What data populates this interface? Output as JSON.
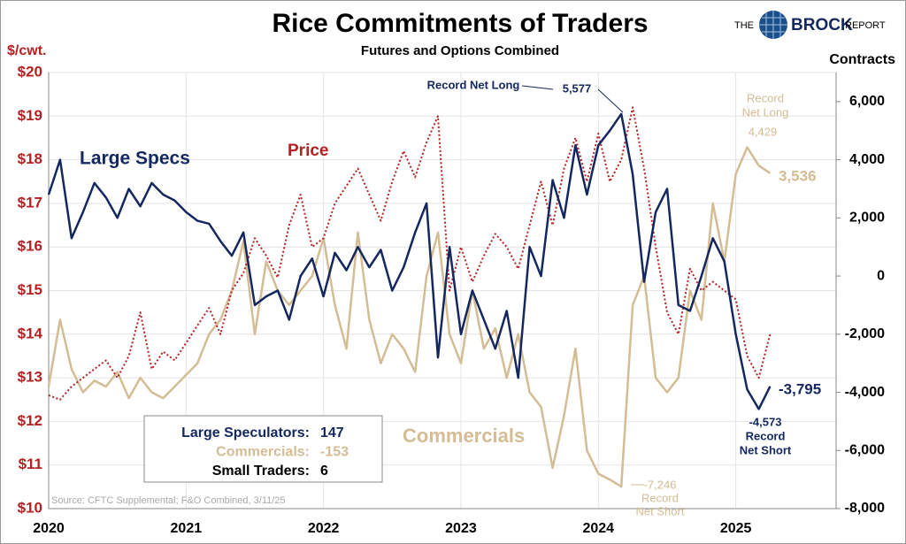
{
  "chart_data": {
    "type": "line",
    "title": "Rice Commitments of Traders",
    "subtitle": "Futures and Options Combined",
    "y_label": "$/cwt.",
    "y2_label": "Contracts",
    "source": "Source: CFTC Supplemental; F&O Combined, 3/11/25",
    "logo": [
      "THE",
      "BROCK",
      "REPORT"
    ],
    "grid": true,
    "xlim": [
      2020,
      2025.73
    ],
    "xticks": [
      2020,
      2021,
      2022,
      2023,
      2024,
      2025
    ],
    "ylim": [
      10,
      20
    ],
    "yticks": [
      {
        "value": 10,
        "label": "$10"
      },
      {
        "value": 11,
        "label": "$11"
      },
      {
        "value": 12,
        "label": "$12"
      },
      {
        "value": 13,
        "label": "$13"
      },
      {
        "value": 14,
        "label": "$14"
      },
      {
        "value": 15,
        "label": "$15"
      },
      {
        "value": 16,
        "label": "$16"
      },
      {
        "value": 17,
        "label": "$17"
      },
      {
        "value": 18,
        "label": "$18"
      },
      {
        "value": 19,
        "label": "$19"
      },
      {
        "value": 20,
        "label": "$20"
      }
    ],
    "y2lim": [
      -8000,
      7000
    ],
    "y2ticks": [
      {
        "value": -8000,
        "label": "-8,000"
      },
      {
        "value": -6000,
        "label": "-6,000"
      },
      {
        "value": -4000,
        "label": "-4,000"
      },
      {
        "value": -2000,
        "label": "-2,000"
      },
      0,
      {
        "value": 2000,
        "label": "2,000"
      },
      {
        "value": 4000,
        "label": "4,000"
      },
      {
        "value": 6000,
        "label": "6,000"
      }
    ],
    "x": [
      2020,
      2020.083,
      2020.167,
      2020.25,
      2020.333,
      2020.417,
      2020.5,
      2020.583,
      2020.667,
      2020.75,
      2020.833,
      2020.917,
      2021,
      2021.083,
      2021.167,
      2021.25,
      2021.333,
      2021.417,
      2021.5,
      2021.583,
      2021.667,
      2021.75,
      2021.833,
      2021.917,
      2022,
      2022.083,
      2022.167,
      2022.25,
      2022.333,
      2022.417,
      2022.5,
      2022.583,
      2022.667,
      2022.75,
      2022.833,
      2022.917,
      2023,
      2023.083,
      2023.167,
      2023.25,
      2023.333,
      2023.417,
      2023.5,
      2023.583,
      2023.667,
      2023.75,
      2023.833,
      2023.917,
      2024,
      2024.083,
      2024.167,
      2024.25,
      2024.333,
      2024.417,
      2024.5,
      2024.583,
      2024.667,
      2024.75,
      2024.833,
      2024.917,
      2025,
      2025.083,
      2025.167,
      2025.25
    ],
    "series": [
      {
        "name": "Large Specs",
        "color": "#14285f",
        "axis": "y2",
        "dash": false,
        "values": [
          2800,
          4000,
          1300,
          2200,
          3200,
          2700,
          2000,
          3000,
          2400,
          3200,
          2800,
          2600,
          2200,
          1900,
          1800,
          1200,
          700,
          1500,
          -1000,
          -700,
          -500,
          -1500,
          0,
          600,
          -700,
          800,
          200,
          1000,
          300,
          900,
          -500,
          300,
          1500,
          2500,
          -2800,
          1000,
          -2000,
          -500,
          -1500,
          -2500,
          -1200,
          -3500,
          1000,
          0,
          3300,
          2000,
          4500,
          2800,
          4500,
          5000,
          5577,
          3500,
          -200,
          2200,
          3000,
          -1000,
          -1200,
          0,
          1300,
          500,
          -2000,
          -3900,
          -4573,
          -3795
        ]
      },
      {
        "name": "Price",
        "color": "#b22222",
        "axis": "y",
        "dash": true,
        "values": [
          12.6,
          12.5,
          12.8,
          13.0,
          13.2,
          13.4,
          13.0,
          13.5,
          14.5,
          13.2,
          13.6,
          13.4,
          13.8,
          14.2,
          14.6,
          14.0,
          15.0,
          15.4,
          16.2,
          15.8,
          15.3,
          16.5,
          17.2,
          16.0,
          16.2,
          17.0,
          17.4,
          17.8,
          17.2,
          16.6,
          17.5,
          18.2,
          17.6,
          18.4,
          19.0,
          15.0,
          16.0,
          15.2,
          15.8,
          16.3,
          16.0,
          15.5,
          16.5,
          17.5,
          16.5,
          17.8,
          18.5,
          17.5,
          18.6,
          17.5,
          18.0,
          19.2,
          17.8,
          16.0,
          14.5,
          14.0,
          15.5,
          15.0,
          15.2,
          15.0,
          14.8,
          13.5,
          13.0,
          14.0
        ]
      },
      {
        "name": "Commercials",
        "color": "#d4bc94",
        "axis": "y2",
        "dash": false,
        "values": [
          -3800,
          -1500,
          -3200,
          -4000,
          -3600,
          -3800,
          -3300,
          -4200,
          -3500,
          -4000,
          -4200,
          -3800,
          -3400,
          -3000,
          -2000,
          -1500,
          -500,
          1200,
          -2000,
          500,
          -500,
          -1000,
          -500,
          0,
          1300,
          -1000,
          -2500,
          1500,
          -1500,
          -3000,
          -2000,
          -2500,
          -3300,
          0,
          1500,
          -2000,
          -3000,
          -500,
          -2500,
          -1800,
          -3500,
          -2000,
          -4000,
          -4500,
          -6600,
          -4800,
          -2500,
          -6000,
          -6800,
          -7000,
          -7246,
          -1000,
          0,
          -3500,
          -4000,
          -3500,
          -500,
          -1500,
          2500,
          500,
          3500,
          4429,
          3800,
          3536
        ]
      }
    ],
    "annotations": [
      "Record Net Long",
      "5,577",
      "Record",
      "Net Long",
      "4,429",
      "3,536",
      "-3,795",
      "-4,573",
      "Record",
      "Net Short",
      "-7,246",
      "Record",
      "Net Short"
    ],
    "box": [
      {
        "label": "Large Speculators:",
        "value": 147,
        "color": "#14285f"
      },
      {
        "label": "Commercials:",
        "value": -153,
        "color": "#d4bc94"
      },
      {
        "label": "Small Traders:",
        "value": 6,
        "color": "#000000"
      }
    ]
  }
}
